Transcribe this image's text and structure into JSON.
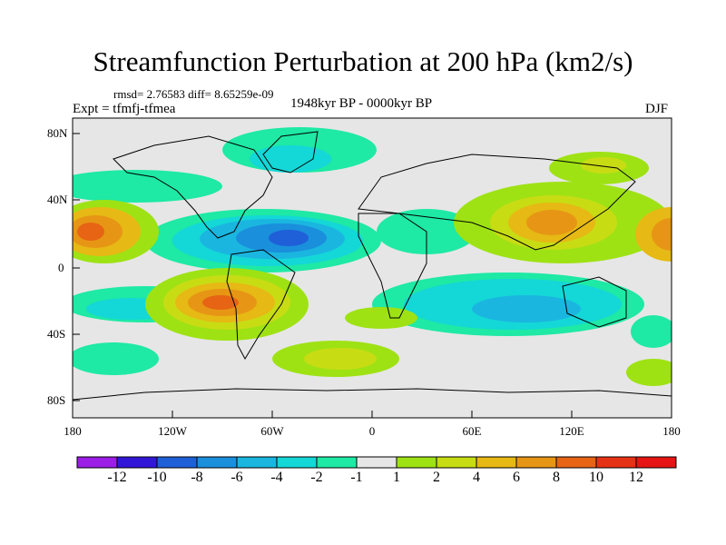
{
  "title": "Streamfunction Perturbation at 200 hPa (km2/s)",
  "stats_line": "rmsd= 2.76583 diff= 8.65259e-09",
  "experiment": "Expt = tfmfj-tfmea",
  "period": "1948kyr BP - 0000kyr BP",
  "season": "DJF",
  "map": {
    "projection": "cylindrical equidistant",
    "lon_range": [
      -180,
      180
    ],
    "lat_range": [
      -90,
      90
    ],
    "x_ticks": [
      "180",
      "120W",
      "60W",
      "0",
      "60E",
      "120E",
      "180"
    ],
    "y_ticks": [
      "80N",
      "40N",
      "0",
      "40S",
      "80S"
    ],
    "features": [
      "positive anomaly over tropical Pacific 20N",
      "positive anomaly over South America 25S",
      "negative anomaly over Atlantic 20N",
      "positive anomaly over East Asia 20N",
      "negative anomaly over Indian Ocean 30S"
    ]
  },
  "colorbar": {
    "labels": [
      "-12",
      "-10",
      "-8",
      "-6",
      "-4",
      "-2",
      "-1",
      "1",
      "2",
      "4",
      "6",
      "8",
      "10",
      "12"
    ],
    "colors": [
      "#9b1de6",
      "#3216d8",
      "#1f5fd8",
      "#1a8fdc",
      "#1ab6e0",
      "#14d7d7",
      "#1ee9a5",
      "#e6e6e6",
      "#9ee214",
      "#c8dc14",
      "#e6b914",
      "#e69614",
      "#e66414",
      "#e63214",
      "#e61414"
    ]
  }
}
